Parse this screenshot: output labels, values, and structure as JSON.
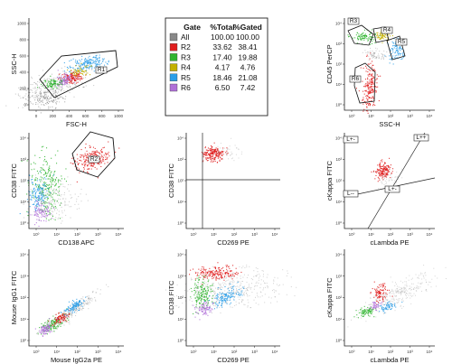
{
  "chart_data": [
    {
      "type": "scatter",
      "id": "p1",
      "xlabel": "FSC-H",
      "ylabel": "SSC-H",
      "xticks": [
        "0",
        "200",
        "400",
        "600",
        "800",
        "1000"
      ],
      "yticks": [
        "0",
        "200",
        "400",
        "600",
        "800",
        "1000"
      ],
      "gates": [
        {
          "label": "R1"
        }
      ],
      "populations": [
        {
          "gate": "R2",
          "color": "#e11d1d",
          "cx": 290,
          "cy": 350
        },
        {
          "gate": "R3",
          "color": "#2fb52f",
          "cx": 170,
          "cy": 300
        },
        {
          "gate": "R5",
          "color": "#2a9ee8",
          "cx": 420,
          "cy": 520
        },
        {
          "gate": "R6",
          "color": "#b070d8",
          "cx": 230,
          "cy": 320
        }
      ]
    },
    {
      "type": "table",
      "id": "legend",
      "columns": [
        "Gate",
        "%Total",
        "%Gated"
      ],
      "rows": [
        {
          "gate": "All",
          "color": "#888888",
          "total": "100.00",
          "gated": "100.00"
        },
        {
          "gate": "R2",
          "color": "#e11d1d",
          "total": "33.62",
          "gated": "38.41"
        },
        {
          "gate": "R3",
          "color": "#2fb52f",
          "total": "17.40",
          "gated": "19.88"
        },
        {
          "gate": "R4",
          "color": "#c4b000",
          "total": "4.17",
          "gated": "4.76"
        },
        {
          "gate": "R5",
          "color": "#2a9ee8",
          "total": "18.46",
          "gated": "21.08"
        },
        {
          "gate": "R6",
          "color": "#b070d8",
          "total": "6.50",
          "gated": "7.42"
        }
      ]
    },
    {
      "type": "scatter",
      "id": "p3",
      "xlabel": "SSC-H",
      "ylabel": "CD45 PerCP",
      "xticks": [
        "10⁰",
        "10¹",
        "10²",
        "10³",
        "10⁴"
      ],
      "yticks": [
        "10⁰",
        "10¹",
        "10²",
        "10³",
        "10⁴"
      ],
      "gates": [
        {
          "label": "R3"
        },
        {
          "label": "R4"
        },
        {
          "label": "R5"
        },
        {
          "label": "R6"
        }
      ]
    },
    {
      "type": "scatter",
      "id": "p4",
      "xlabel": "CD138 APC",
      "ylabel": "CD38 FITC",
      "xticks": [
        "10⁰",
        "10¹",
        "10²",
        "10³",
        "10⁴"
      ],
      "yticks": [
        "10⁰",
        "10¹",
        "10²",
        "10³",
        "10⁴"
      ],
      "gates": [
        {
          "label": "R2"
        }
      ]
    },
    {
      "type": "scatter",
      "id": "p5",
      "xlabel": "CD269 PE",
      "ylabel": "CD38 FITC",
      "xticks": [
        "10⁰",
        "10¹",
        "10²",
        "10³",
        "10⁴"
      ],
      "yticks": [
        "10⁰",
        "10¹",
        "10²",
        "10³",
        "10⁴"
      ]
    },
    {
      "type": "scatter",
      "id": "p6",
      "xlabel": "cLambda PE",
      "ylabel": "cKappa FITC",
      "xticks": [
        "10⁰",
        "10¹",
        "10²",
        "10³",
        "10⁴"
      ],
      "yticks": [
        "10⁰",
        "10¹",
        "10²",
        "10³",
        "10⁴"
      ],
      "quadrants": [
        "L+-",
        "L++",
        "L--",
        "L+-"
      ]
    },
    {
      "type": "scatter",
      "id": "p7",
      "xlabel": "Mouse IgG2a PE",
      "ylabel": "Mouse IgG1 FITC",
      "xticks": [
        "10⁰",
        "10¹",
        "10²",
        "10³",
        "10⁴"
      ],
      "yticks": [
        "10⁰",
        "10¹",
        "10²",
        "10³",
        "10⁴"
      ]
    },
    {
      "type": "scatter",
      "id": "p8",
      "xlabel": "CD269 PE",
      "ylabel": "CD38 FITC",
      "xticks": [
        "10⁰",
        "10¹",
        "10²",
        "10³",
        "10⁴"
      ],
      "yticks": [
        "10⁰",
        "10¹",
        "10²",
        "10³",
        "10⁴"
      ]
    },
    {
      "type": "scatter",
      "id": "p9",
      "xlabel": "cLambda PE",
      "ylabel": "cKappa FITC",
      "xticks": [
        "10⁰",
        "10¹",
        "10²",
        "10³",
        "10⁴"
      ],
      "yticks": [
        "10⁰",
        "10¹",
        "10²",
        "10³",
        "10⁴"
      ]
    }
  ]
}
